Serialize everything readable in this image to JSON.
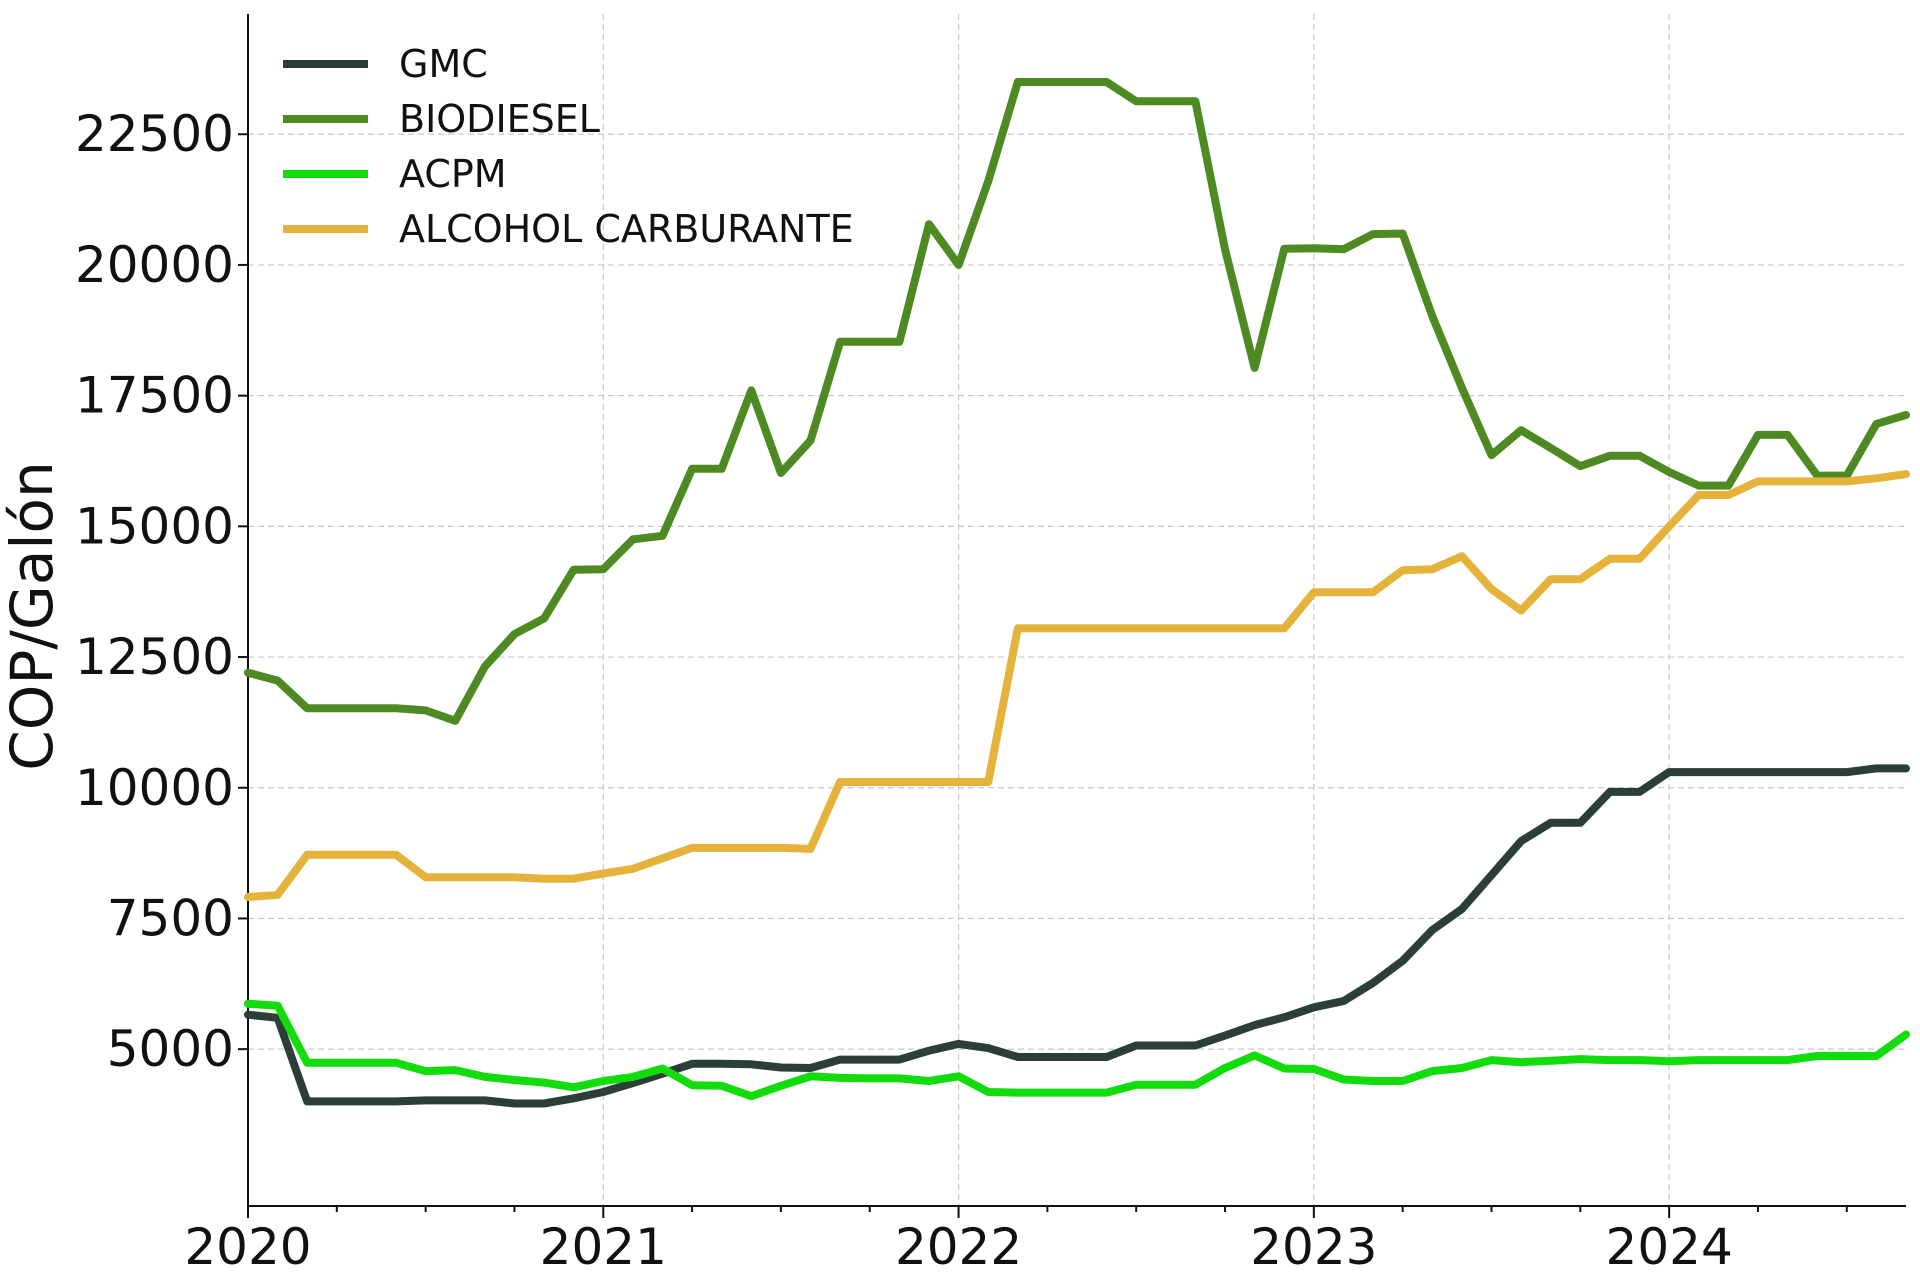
{
  "chart_data": {
    "type": "line",
    "title": "",
    "xlabel": "",
    "ylabel": "COP/Galón",
    "grid": true,
    "legend_position": "top-left",
    "xlim": [
      "2020-01",
      "2024-09"
    ],
    "ylim": [
      2000,
      24800
    ],
    "x_ticks": [
      "2020",
      "2021",
      "2022",
      "2023",
      "2024"
    ],
    "y_ticks": [
      5000,
      7500,
      10000,
      12500,
      15000,
      17500,
      20000,
      22500
    ],
    "x": [
      "2020-01",
      "2020-02",
      "2020-03",
      "2020-04",
      "2020-05",
      "2020-06",
      "2020-07",
      "2020-08",
      "2020-09",
      "2020-10",
      "2020-11",
      "2020-12",
      "2021-01",
      "2021-02",
      "2021-03",
      "2021-04",
      "2021-05",
      "2021-06",
      "2021-07",
      "2021-08",
      "2021-09",
      "2021-10",
      "2021-11",
      "2021-12",
      "2022-01",
      "2022-02",
      "2022-03",
      "2022-04",
      "2022-05",
      "2022-06",
      "2022-07",
      "2022-08",
      "2022-09",
      "2022-10",
      "2022-11",
      "2022-12",
      "2023-01",
      "2023-02",
      "2023-03",
      "2023-04",
      "2023-05",
      "2023-06",
      "2023-07",
      "2023-08",
      "2023-09",
      "2023-10",
      "2023-11",
      "2023-12",
      "2024-01",
      "2024-02",
      "2024-03",
      "2024-04",
      "2024-05",
      "2024-06",
      "2024-07",
      "2024-08",
      "2024-09"
    ],
    "series": [
      {
        "name": "GMC",
        "color": "#2b3f36",
        "values": [
          5660,
          5600,
          4000,
          4000,
          4000,
          4000,
          4020,
          4020,
          4020,
          3960,
          3960,
          4060,
          4180,
          4350,
          4530,
          4720,
          4720,
          4710,
          4650,
          4640,
          4800,
          4800,
          4800,
          4970,
          5100,
          5020,
          4850,
          4850,
          4850,
          4850,
          5070,
          5070,
          5070,
          5260,
          5460,
          5610,
          5800,
          5920,
          6270,
          6690,
          7280,
          7680,
          8330,
          8980,
          9330,
          9330,
          9920,
          9920,
          10300,
          10300,
          10300,
          10300,
          10300,
          10300,
          10300,
          10370,
          10370
        ]
      },
      {
        "name": "BIODIESEL",
        "color": "#4e8a22",
        "values": [
          12200,
          12050,
          11520,
          11520,
          11520,
          11520,
          11480,
          11280,
          12320,
          12940,
          13240,
          14170,
          14180,
          14750,
          14820,
          16100,
          16100,
          17600,
          16020,
          16640,
          18530,
          18530,
          18530,
          20780,
          20000,
          21600,
          23500,
          23500,
          23500,
          23500,
          23130,
          23130,
          23130,
          20300,
          18030,
          20310,
          20320,
          20300,
          20590,
          20600,
          19020,
          17650,
          16360,
          16840,
          16500,
          16150,
          16350,
          16350,
          16040,
          15780,
          15780,
          16750,
          16750,
          15970,
          15970,
          16960,
          17130
        ]
      },
      {
        "name": "ACPM",
        "color": "#12dc0c",
        "values": [
          5870,
          5830,
          4740,
          4740,
          4740,
          4740,
          4580,
          4600,
          4470,
          4410,
          4360,
          4270,
          4390,
          4470,
          4630,
          4310,
          4300,
          4100,
          4300,
          4480,
          4450,
          4440,
          4440,
          4390,
          4480,
          4180,
          4170,
          4170,
          4170,
          4170,
          4320,
          4320,
          4320,
          4640,
          4880,
          4630,
          4620,
          4420,
          4390,
          4390,
          4580,
          4640,
          4790,
          4750,
          4780,
          4810,
          4790,
          4790,
          4770,
          4790,
          4790,
          4790,
          4790,
          4870,
          4870,
          4870,
          5280
        ]
      },
      {
        "name": "ALCOHOL CARBURANTE",
        "color": "#e5b33c",
        "values": [
          7910,
          7950,
          8720,
          8720,
          8720,
          8720,
          8290,
          8290,
          8290,
          8290,
          8260,
          8260,
          8360,
          8450,
          8650,
          8850,
          8850,
          8850,
          8850,
          8830,
          10110,
          10110,
          10110,
          10110,
          10110,
          10110,
          13050,
          13050,
          13050,
          13050,
          13050,
          13050,
          13050,
          13050,
          13050,
          13050,
          13740,
          13740,
          13740,
          14160,
          14180,
          14430,
          13800,
          13390,
          13990,
          13990,
          14380,
          14380,
          15000,
          15600,
          15600,
          15860,
          15860,
          15860,
          15860,
          15920,
          16000
        ]
      }
    ]
  }
}
